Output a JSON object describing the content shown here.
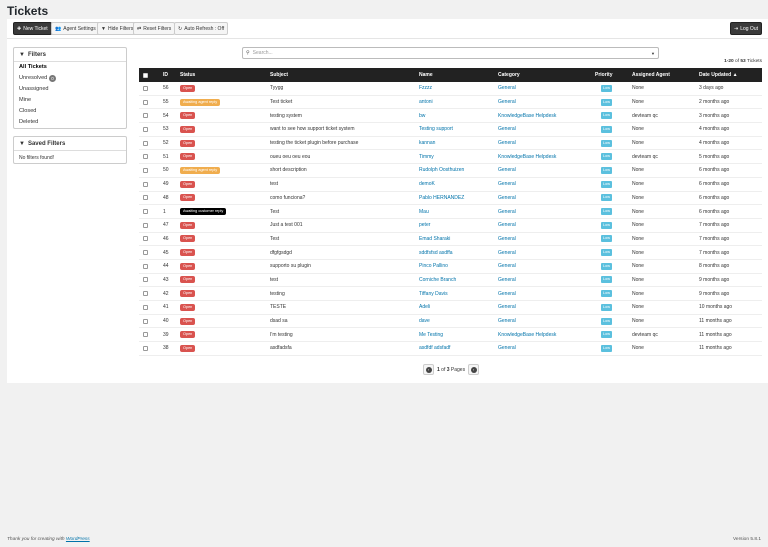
{
  "page_title": "Tickets",
  "toolbar": {
    "new_ticket": "New Ticket",
    "agent_settings": "Agent Settings",
    "hide_filters": "Hide Filters",
    "reset_filters": "Reset Filters",
    "auto_refresh": "Auto Refresh : Off",
    "log_out": "Log Out"
  },
  "filters": {
    "title": "Filters",
    "items": [
      {
        "label": "All Tickets",
        "active": true
      },
      {
        "label": "Unresolved",
        "count": "0"
      },
      {
        "label": "Unassigned"
      },
      {
        "label": "Mine"
      },
      {
        "label": "Closed"
      },
      {
        "label": "Deleted"
      }
    ]
  },
  "saved_filters": {
    "title": "Saved Filters",
    "empty": "No filters found!"
  },
  "search": {
    "placeholder": "Search..."
  },
  "count_label": {
    "range": "1-20",
    "of": "of",
    "total": "53",
    "suffix": "Tickets"
  },
  "table": {
    "headers": {
      "id": "ID",
      "status": "Status",
      "subject": "Subject",
      "name": "Name",
      "category": "Category",
      "priority": "Priority",
      "agent": "Assigned Agent",
      "updated": "Date Updated ▲"
    },
    "rows": [
      {
        "id": "56",
        "status": "Open",
        "kind": "open",
        "subject": "Tyygg",
        "name": "Fzzzz",
        "category": "General",
        "priority": "Low",
        "agent": "None",
        "updated": "3 days ago"
      },
      {
        "id": "55",
        "status": "Awaiting agent reply",
        "kind": "awa",
        "subject": "Test ticket",
        "name": "antoni",
        "category": "General",
        "priority": "Low",
        "agent": "None",
        "updated": "2 months ago"
      },
      {
        "id": "54",
        "status": "Open",
        "kind": "open",
        "subject": "testing system",
        "name": "bw",
        "category": "KnowledgeBase Helpdesk",
        "priority": "Low",
        "agent": "devteam qc",
        "updated": "3 months ago"
      },
      {
        "id": "53",
        "status": "Open",
        "kind": "open",
        "subject": "want to see how support ticket system",
        "name": "Testing support",
        "category": "General",
        "priority": "Low",
        "agent": "None",
        "updated": "4 months ago"
      },
      {
        "id": "52",
        "status": "Open",
        "kind": "open",
        "subject": "testing the ticket plugin before purchase",
        "name": "kannan",
        "category": "General",
        "priority": "Low",
        "agent": "None",
        "updated": "4 months ago"
      },
      {
        "id": "51",
        "status": "Open",
        "kind": "open",
        "subject": "oueu oeu oeu eou",
        "name": "Timmy",
        "category": "KnowledgeBase Helpdesk",
        "priority": "Low",
        "agent": "devteam qc",
        "updated": "5 months ago"
      },
      {
        "id": "50",
        "status": "Awaiting agent reply",
        "kind": "awa",
        "subject": "short description",
        "name": "Rudolph Oosthuizen",
        "category": "General",
        "priority": "Low",
        "agent": "None",
        "updated": "6 months ago"
      },
      {
        "id": "49",
        "status": "Open",
        "kind": "open",
        "subject": "test",
        "name": "demoK",
        "category": "General",
        "priority": "Low",
        "agent": "None",
        "updated": "6 months ago"
      },
      {
        "id": "48",
        "status": "Open",
        "kind": "open",
        "subject": "como funciona?",
        "name": "Pablo HERNANDEZ",
        "category": "General",
        "priority": "Low",
        "agent": "None",
        "updated": "6 months ago"
      },
      {
        "id": "1",
        "status": "Awaiting customer reply",
        "kind": "awc",
        "subject": "Test",
        "name": "Mau",
        "category": "General",
        "priority": "Low",
        "agent": "None",
        "updated": "6 months ago"
      },
      {
        "id": "47",
        "status": "Open",
        "kind": "open",
        "subject": "Just a test 001",
        "name": "peter",
        "category": "General",
        "priority": "Low",
        "agent": "None",
        "updated": "7 months ago"
      },
      {
        "id": "46",
        "status": "Open",
        "kind": "open",
        "subject": "Test",
        "name": "Emad Sharaki",
        "category": "General",
        "priority": "Low",
        "agent": "None",
        "updated": "7 months ago"
      },
      {
        "id": "45",
        "status": "Open",
        "kind": "open",
        "subject": "dfgfgsdgd",
        "name": "sddfsfsd asdffa",
        "category": "General",
        "priority": "Low",
        "agent": "None",
        "updated": "7 months ago"
      },
      {
        "id": "44",
        "status": "Open",
        "kind": "open",
        "subject": "supporto su plugin",
        "name": "Pinco Pallino",
        "category": "General",
        "priority": "Low",
        "agent": "None",
        "updated": "8 months ago"
      },
      {
        "id": "43",
        "status": "Open",
        "kind": "open",
        "subject": "test",
        "name": "Corniche Branch",
        "category": "General",
        "priority": "Low",
        "agent": "None",
        "updated": "9 months ago"
      },
      {
        "id": "42",
        "status": "Open",
        "kind": "open",
        "subject": "testing",
        "name": "Tiffany Davis",
        "category": "General",
        "priority": "Low",
        "agent": "None",
        "updated": "9 months ago"
      },
      {
        "id": "41",
        "status": "Open",
        "kind": "open",
        "subject": "TESTE",
        "name": "Adeli",
        "category": "General",
        "priority": "Low",
        "agent": "None",
        "updated": "10 months ago"
      },
      {
        "id": "40",
        "status": "Open",
        "kind": "open",
        "subject": "dsad sa",
        "name": "dave",
        "category": "General",
        "priority": "Low",
        "agent": "None",
        "updated": "11 months ago"
      },
      {
        "id": "39",
        "status": "Open",
        "kind": "open",
        "subject": "I'm testing",
        "name": "Me Testing",
        "category": "KnowledgeBase Helpdesk",
        "priority": "Low",
        "agent": "devteam qc",
        "updated": "11 months ago"
      },
      {
        "id": "38",
        "status": "Open",
        "kind": "open",
        "subject": "asdfadsfa",
        "name": "asdfdf adsfadf",
        "category": "General",
        "priority": "Low",
        "agent": "None",
        "updated": "11 months ago"
      }
    ]
  },
  "pager": {
    "current": "1",
    "of": "of",
    "total": "3",
    "suffix": "Pages"
  },
  "footer": {
    "thank_you": "Thank you for creating with",
    "wordpress": "WordPress",
    "version": "Version 5.8.1"
  },
  "colors": {
    "open": "#d9534f",
    "awaiting_agent": "#f0ad4e",
    "awaiting_customer": "#000000",
    "priority_low": "#5bc0de",
    "header_bg": "#222222"
  }
}
